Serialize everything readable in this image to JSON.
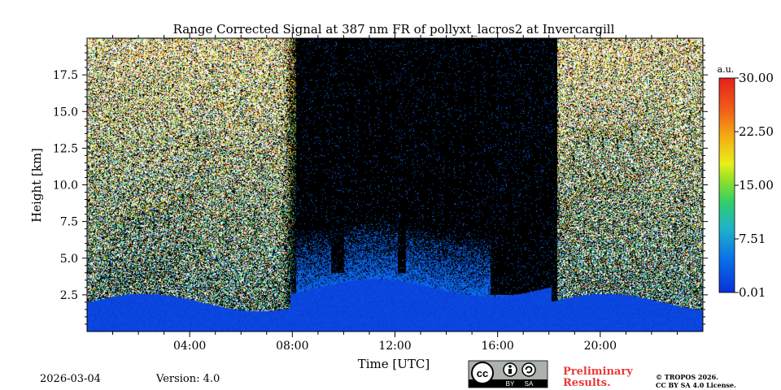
{
  "chart_data": {
    "type": "heatmap",
    "title": "Range Corrected Signal at 387 nm FR of pollyxt_lacros2 at Invercargill",
    "xlabel": "Time [UTC]",
    "ylabel": "Height [km]",
    "xlim_hours": [
      0,
      24
    ],
    "ylim_km": [
      0,
      20
    ],
    "x_ticks": [
      {
        "hour": 4,
        "label": "04:00"
      },
      {
        "hour": 8,
        "label": "08:00"
      },
      {
        "hour": 12,
        "label": "12:00"
      },
      {
        "hour": 16,
        "label": "16:00"
      },
      {
        "hour": 20,
        "label": "20:00"
      }
    ],
    "y_ticks": [
      {
        "km": 2.5,
        "label": "2.5"
      },
      {
        "km": 5.0,
        "label": "5.0"
      },
      {
        "km": 7.5,
        "label": "7.5"
      },
      {
        "km": 10.0,
        "label": "10.0"
      },
      {
        "km": 12.5,
        "label": "12.5"
      },
      {
        "km": 15.0,
        "label": "15.0"
      },
      {
        "km": 17.5,
        "label": "17.5"
      }
    ],
    "colorbar": {
      "unit": "a.u.",
      "range": [
        0.01,
        30.0
      ],
      "ticks": [
        {
          "value": 0.01,
          "label": "0.01"
        },
        {
          "value": 7.51,
          "label": "7.51"
        },
        {
          "value": 15.0,
          "label": "15.00"
        },
        {
          "value": 22.5,
          "label": "22.50"
        },
        {
          "value": 30.0,
          "label": "30.00"
        }
      ],
      "colormap": "jet-like"
    },
    "daylight_hours_low_signal": [
      8.0,
      18.0
    ],
    "cloud_columns": [
      {
        "start_hour": 9.5,
        "end_hour": 10.0,
        "base_km": 4.0
      },
      {
        "start_hour": 12.1,
        "end_hour": 12.4,
        "base_km": 4.0
      },
      {
        "start_hour": 15.7,
        "end_hour": 17.7,
        "base_km": 2.5
      },
      {
        "start_hour": 17.7,
        "end_hour": 18.3,
        "base_km": 1.8
      }
    ],
    "boundary_layer_top_km": 2.0
  },
  "footer": {
    "date": "2026-03-04",
    "version": "Version: 4.0",
    "cc_label": "cc",
    "by_label": "BY",
    "sa_label": "SA",
    "preliminary_line1": "Preliminary",
    "preliminary_line2": "Results.",
    "copyright_line1": "© TROPOS 2026.",
    "copyright_line2": "CC BY SA 4.0 License."
  },
  "colors": {
    "background_low": "#0a3fd8",
    "night_noise": "#e8e8e8",
    "preliminary_red": "#e83a3a"
  }
}
